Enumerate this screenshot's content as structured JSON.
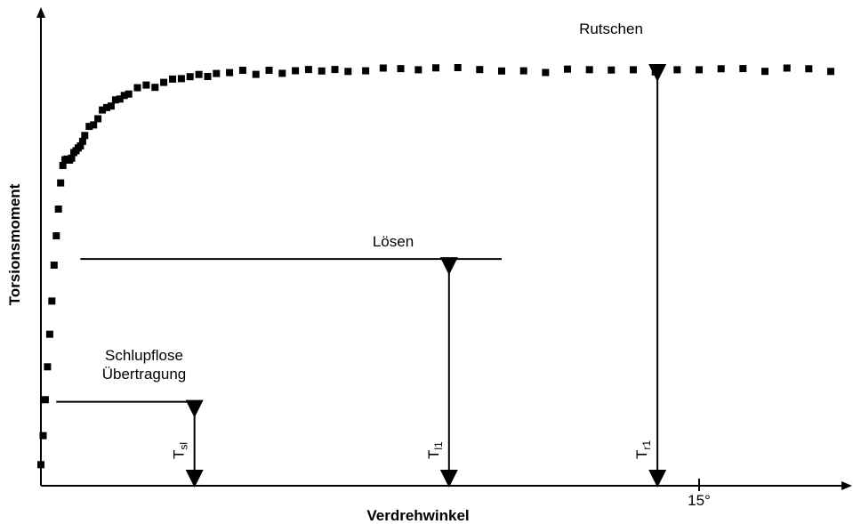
{
  "chart_data": {
    "type": "scatter",
    "xlabel": "Verdrehwinkel",
    "ylabel": "Torsionsmoment",
    "x_unit": "°",
    "x_tick_labels": [
      "15°"
    ],
    "x_ticks": [
      15
    ],
    "xlim": [
      0,
      18
    ],
    "ylim": [
      0,
      1.0
    ],
    "grid": false,
    "legend": "none",
    "series": [
      {
        "marker": "square",
        "color": "#000000",
        "x": [
          0.0,
          0.05,
          0.1,
          0.15,
          0.2,
          0.25,
          0.3,
          0.35,
          0.4,
          0.45,
          0.5,
          0.55,
          0.6,
          0.65,
          0.7,
          0.75,
          0.8,
          0.85,
          0.9,
          0.95,
          1.0,
          1.1,
          1.2,
          1.3,
          1.4,
          1.5,
          1.6,
          1.7,
          1.8,
          1.9,
          2.0,
          2.2,
          2.4,
          2.6,
          2.8,
          3.0,
          3.2,
          3.4,
          3.6,
          3.8,
          4.0,
          4.3,
          4.6,
          4.9,
          5.2,
          5.5,
          5.8,
          6.1,
          6.4,
          6.7,
          7.0,
          7.4,
          7.8,
          8.2,
          8.6,
          9.0,
          9.5,
          10.0,
          10.5,
          11.0,
          11.5,
          12.0,
          12.5,
          13.0,
          13.5,
          14.0,
          14.5,
          15.0,
          15.5,
          16.0,
          16.5,
          17.0,
          17.5,
          18.0
        ],
        "y": [
          0.05,
          0.12,
          0.2,
          0.28,
          0.36,
          0.44,
          0.52,
          0.6,
          0.66,
          0.72,
          0.76,
          0.78,
          0.78,
          0.77,
          0.78,
          0.79,
          0.8,
          0.8,
          0.81,
          0.82,
          0.83,
          0.85,
          0.865,
          0.88,
          0.89,
          0.9,
          0.91,
          0.915,
          0.92,
          0.93,
          0.935,
          0.945,
          0.95,
          0.955,
          0.96,
          0.965,
          0.97,
          0.972,
          0.975,
          0.978,
          0.98,
          0.982,
          0.984,
          0.985,
          0.986,
          0.987,
          0.988,
          0.988,
          0.989,
          0.99,
          0.99,
          0.99,
          0.99,
          0.99,
          0.99,
          0.99,
          0.99,
          0.99,
          0.99,
          0.99,
          0.99,
          0.99,
          0.99,
          0.99,
          0.99,
          0.99,
          0.99,
          0.99,
          0.99,
          0.99,
          0.99,
          0.99,
          0.99,
          0.99
        ]
      }
    ],
    "annotations": [
      {
        "id": "tsl",
        "text": "Schlupflose",
        "text2": "Übertragung",
        "symbol": "T",
        "subscript": "sl",
        "x": 3.5,
        "y": 0.2,
        "line_x": [
          0.35,
          3.6
        ]
      },
      {
        "id": "tl1",
        "text": "Lösen",
        "text2": "",
        "symbol": "T",
        "subscript": "l1",
        "x": 9.3,
        "y": 0.54,
        "line_x": [
          0.9,
          10.5
        ]
      },
      {
        "id": "tr1",
        "text": "Rutschen",
        "text2": "",
        "symbol": "T",
        "subscript": "r1",
        "x": 14.05,
        "y": 1.0,
        "line_x": []
      }
    ]
  }
}
